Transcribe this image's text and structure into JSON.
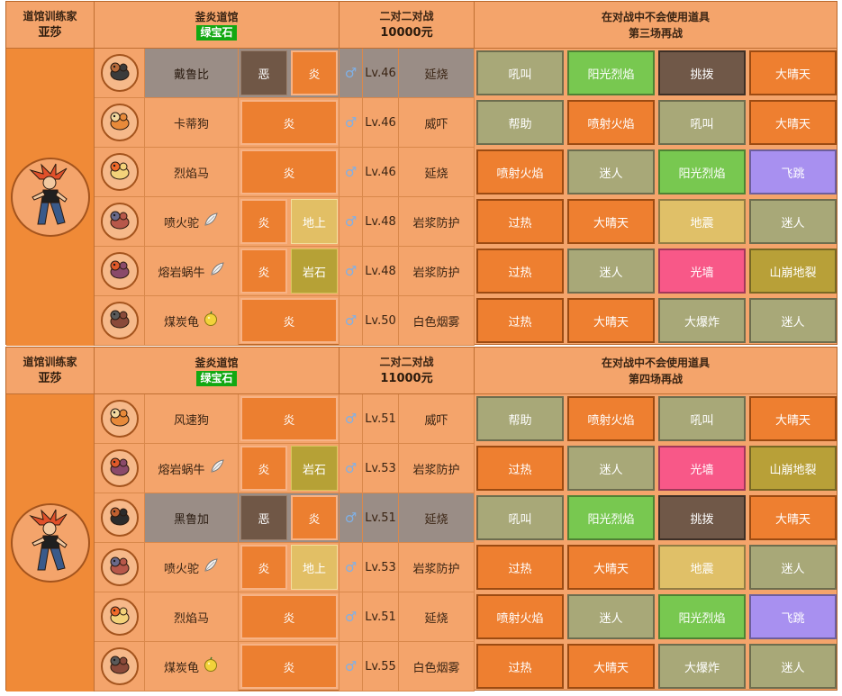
{
  "blocks": [
    {
      "header": {
        "role_label": "道馆训练家",
        "trainer_name": "亚莎",
        "gym_name": "釜炎道馆",
        "version_badge": "绿宝石",
        "battle_type": "二对二对战",
        "prize": "10000元",
        "note_line1": "在对战中不会使用道具",
        "note_line2": "第三场再战"
      },
      "pokemon": [
        {
          "name": "戴鲁比",
          "icon": "houndour-icon",
          "item": null,
          "types": [
            "恶",
            "炎"
          ],
          "level": "Lv.46",
          "ability": "延烧",
          "highlight": true,
          "moves": [
            {
              "label": "吼叫",
              "type": "normal"
            },
            {
              "label": "阳光烈焰",
              "type": "grass"
            },
            {
              "label": "挑拨",
              "type": "dark"
            },
            {
              "label": "大晴天",
              "type": "fire"
            }
          ]
        },
        {
          "name": "卡蒂狗",
          "icon": "growlithe-icon",
          "item": null,
          "types": [
            "炎"
          ],
          "level": "Lv.46",
          "ability": "威吓",
          "highlight": false,
          "moves": [
            {
              "label": "帮助",
              "type": "normal"
            },
            {
              "label": "喷射火焰",
              "type": "fire"
            },
            {
              "label": "吼叫",
              "type": "normal"
            },
            {
              "label": "大晴天",
              "type": "fire"
            }
          ]
        },
        {
          "name": "烈焰马",
          "icon": "ponyta-icon",
          "item": null,
          "types": [
            "炎"
          ],
          "level": "Lv.46",
          "ability": "延烧",
          "highlight": false,
          "moves": [
            {
              "label": "喷射火焰",
              "type": "fire"
            },
            {
              "label": "迷人",
              "type": "normal"
            },
            {
              "label": "阳光烈焰",
              "type": "grass"
            },
            {
              "label": "飞跳",
              "type": "flying"
            }
          ]
        },
        {
          "name": "喷火驼",
          "icon": "camerupt-icon",
          "item": "white-herb-icon",
          "types": [
            "炎",
            "地上"
          ],
          "level": "Lv.48",
          "ability": "岩浆防护",
          "highlight": false,
          "moves": [
            {
              "label": "过热",
              "type": "fire"
            },
            {
              "label": "大晴天",
              "type": "fire"
            },
            {
              "label": "地震",
              "type": "ground"
            },
            {
              "label": "迷人",
              "type": "normal"
            }
          ]
        },
        {
          "name": "熔岩蜗牛",
          "icon": "magcargo-icon",
          "item": "white-herb-icon",
          "types": [
            "炎",
            "岩石"
          ],
          "level": "Lv.48",
          "ability": "岩浆防护",
          "highlight": false,
          "moves": [
            {
              "label": "过热",
              "type": "fire"
            },
            {
              "label": "迷人",
              "type": "normal"
            },
            {
              "label": "光墙",
              "type": "psychic"
            },
            {
              "label": "山崩地裂",
              "type": "rock"
            }
          ]
        },
        {
          "name": "煤炭龟",
          "icon": "torkoal-icon",
          "item": "sitrus-berry-icon",
          "types": [
            "炎"
          ],
          "level": "Lv.50",
          "ability": "白色烟雾",
          "highlight": false,
          "moves": [
            {
              "label": "过热",
              "type": "fire"
            },
            {
              "label": "大晴天",
              "type": "fire"
            },
            {
              "label": "大爆炸",
              "type": "normal"
            },
            {
              "label": "迷人",
              "type": "normal"
            }
          ]
        }
      ]
    },
    {
      "header": {
        "role_label": "道馆训练家",
        "trainer_name": "亚莎",
        "gym_name": "釜炎道馆",
        "version_badge": "绿宝石",
        "battle_type": "二对二对战",
        "prize": "11000元",
        "note_line1": "在对战中不会使用道具",
        "note_line2": "第四场再战"
      },
      "pokemon": [
        {
          "name": "风速狗",
          "icon": "arcanine-icon",
          "item": null,
          "types": [
            "炎"
          ],
          "level": "Lv.51",
          "ability": "威吓",
          "highlight": false,
          "moves": [
            {
              "label": "帮助",
              "type": "normal"
            },
            {
              "label": "喷射火焰",
              "type": "fire"
            },
            {
              "label": "吼叫",
              "type": "normal"
            },
            {
              "label": "大晴天",
              "type": "fire"
            }
          ]
        },
        {
          "name": "熔岩蜗牛",
          "icon": "magcargo-icon",
          "item": "white-herb-icon",
          "types": [
            "炎",
            "岩石"
          ],
          "level": "Lv.53",
          "ability": "岩浆防护",
          "highlight": false,
          "moves": [
            {
              "label": "过热",
              "type": "fire"
            },
            {
              "label": "迷人",
              "type": "normal"
            },
            {
              "label": "光墙",
              "type": "psychic"
            },
            {
              "label": "山崩地裂",
              "type": "rock"
            }
          ]
        },
        {
          "name": "黑鲁加",
          "icon": "houndoom-icon",
          "item": null,
          "types": [
            "恶",
            "炎"
          ],
          "level": "Lv.51",
          "ability": "延烧",
          "highlight": true,
          "moves": [
            {
              "label": "吼叫",
              "type": "normal"
            },
            {
              "label": "阳光烈焰",
              "type": "grass"
            },
            {
              "label": "挑拨",
              "type": "dark"
            },
            {
              "label": "大晴天",
              "type": "fire"
            }
          ]
        },
        {
          "name": "喷火驼",
          "icon": "camerupt-icon",
          "item": "white-herb-icon",
          "types": [
            "炎",
            "地上"
          ],
          "level": "Lv.53",
          "ability": "岩浆防护",
          "highlight": false,
          "moves": [
            {
              "label": "过热",
              "type": "fire"
            },
            {
              "label": "大晴天",
              "type": "fire"
            },
            {
              "label": "地震",
              "type": "ground"
            },
            {
              "label": "迷人",
              "type": "normal"
            }
          ]
        },
        {
          "name": "烈焰马",
          "icon": "ponyta-icon",
          "item": null,
          "types": [
            "炎"
          ],
          "level": "Lv.51",
          "ability": "延烧",
          "highlight": false,
          "moves": [
            {
              "label": "喷射火焰",
              "type": "fire"
            },
            {
              "label": "迷人",
              "type": "normal"
            },
            {
              "label": "阳光烈焰",
              "type": "grass"
            },
            {
              "label": "飞跳",
              "type": "flying"
            }
          ]
        },
        {
          "name": "煤炭龟",
          "icon": "torkoal-icon",
          "item": "sitrus-berry-icon",
          "types": [
            "炎"
          ],
          "level": "Lv.55",
          "ability": "白色烟雾",
          "highlight": false,
          "moves": [
            {
              "label": "过热",
              "type": "fire"
            },
            {
              "label": "大晴天",
              "type": "fire"
            },
            {
              "label": "大爆炸",
              "type": "normal"
            },
            {
              "label": "迷人",
              "type": "normal"
            }
          ]
        }
      ]
    }
  ],
  "gender_symbol": "♂",
  "trainer_icon": "trainer-flannery-icon",
  "type_colors": {
    "fire": "#ee7f30",
    "dark": "#705848",
    "ground": "#e0c068",
    "rock": "#b8a038",
    "normal": "#a8a878",
    "grass": "#78c850",
    "flying": "#a890f0",
    "psychic": "#f85888"
  }
}
